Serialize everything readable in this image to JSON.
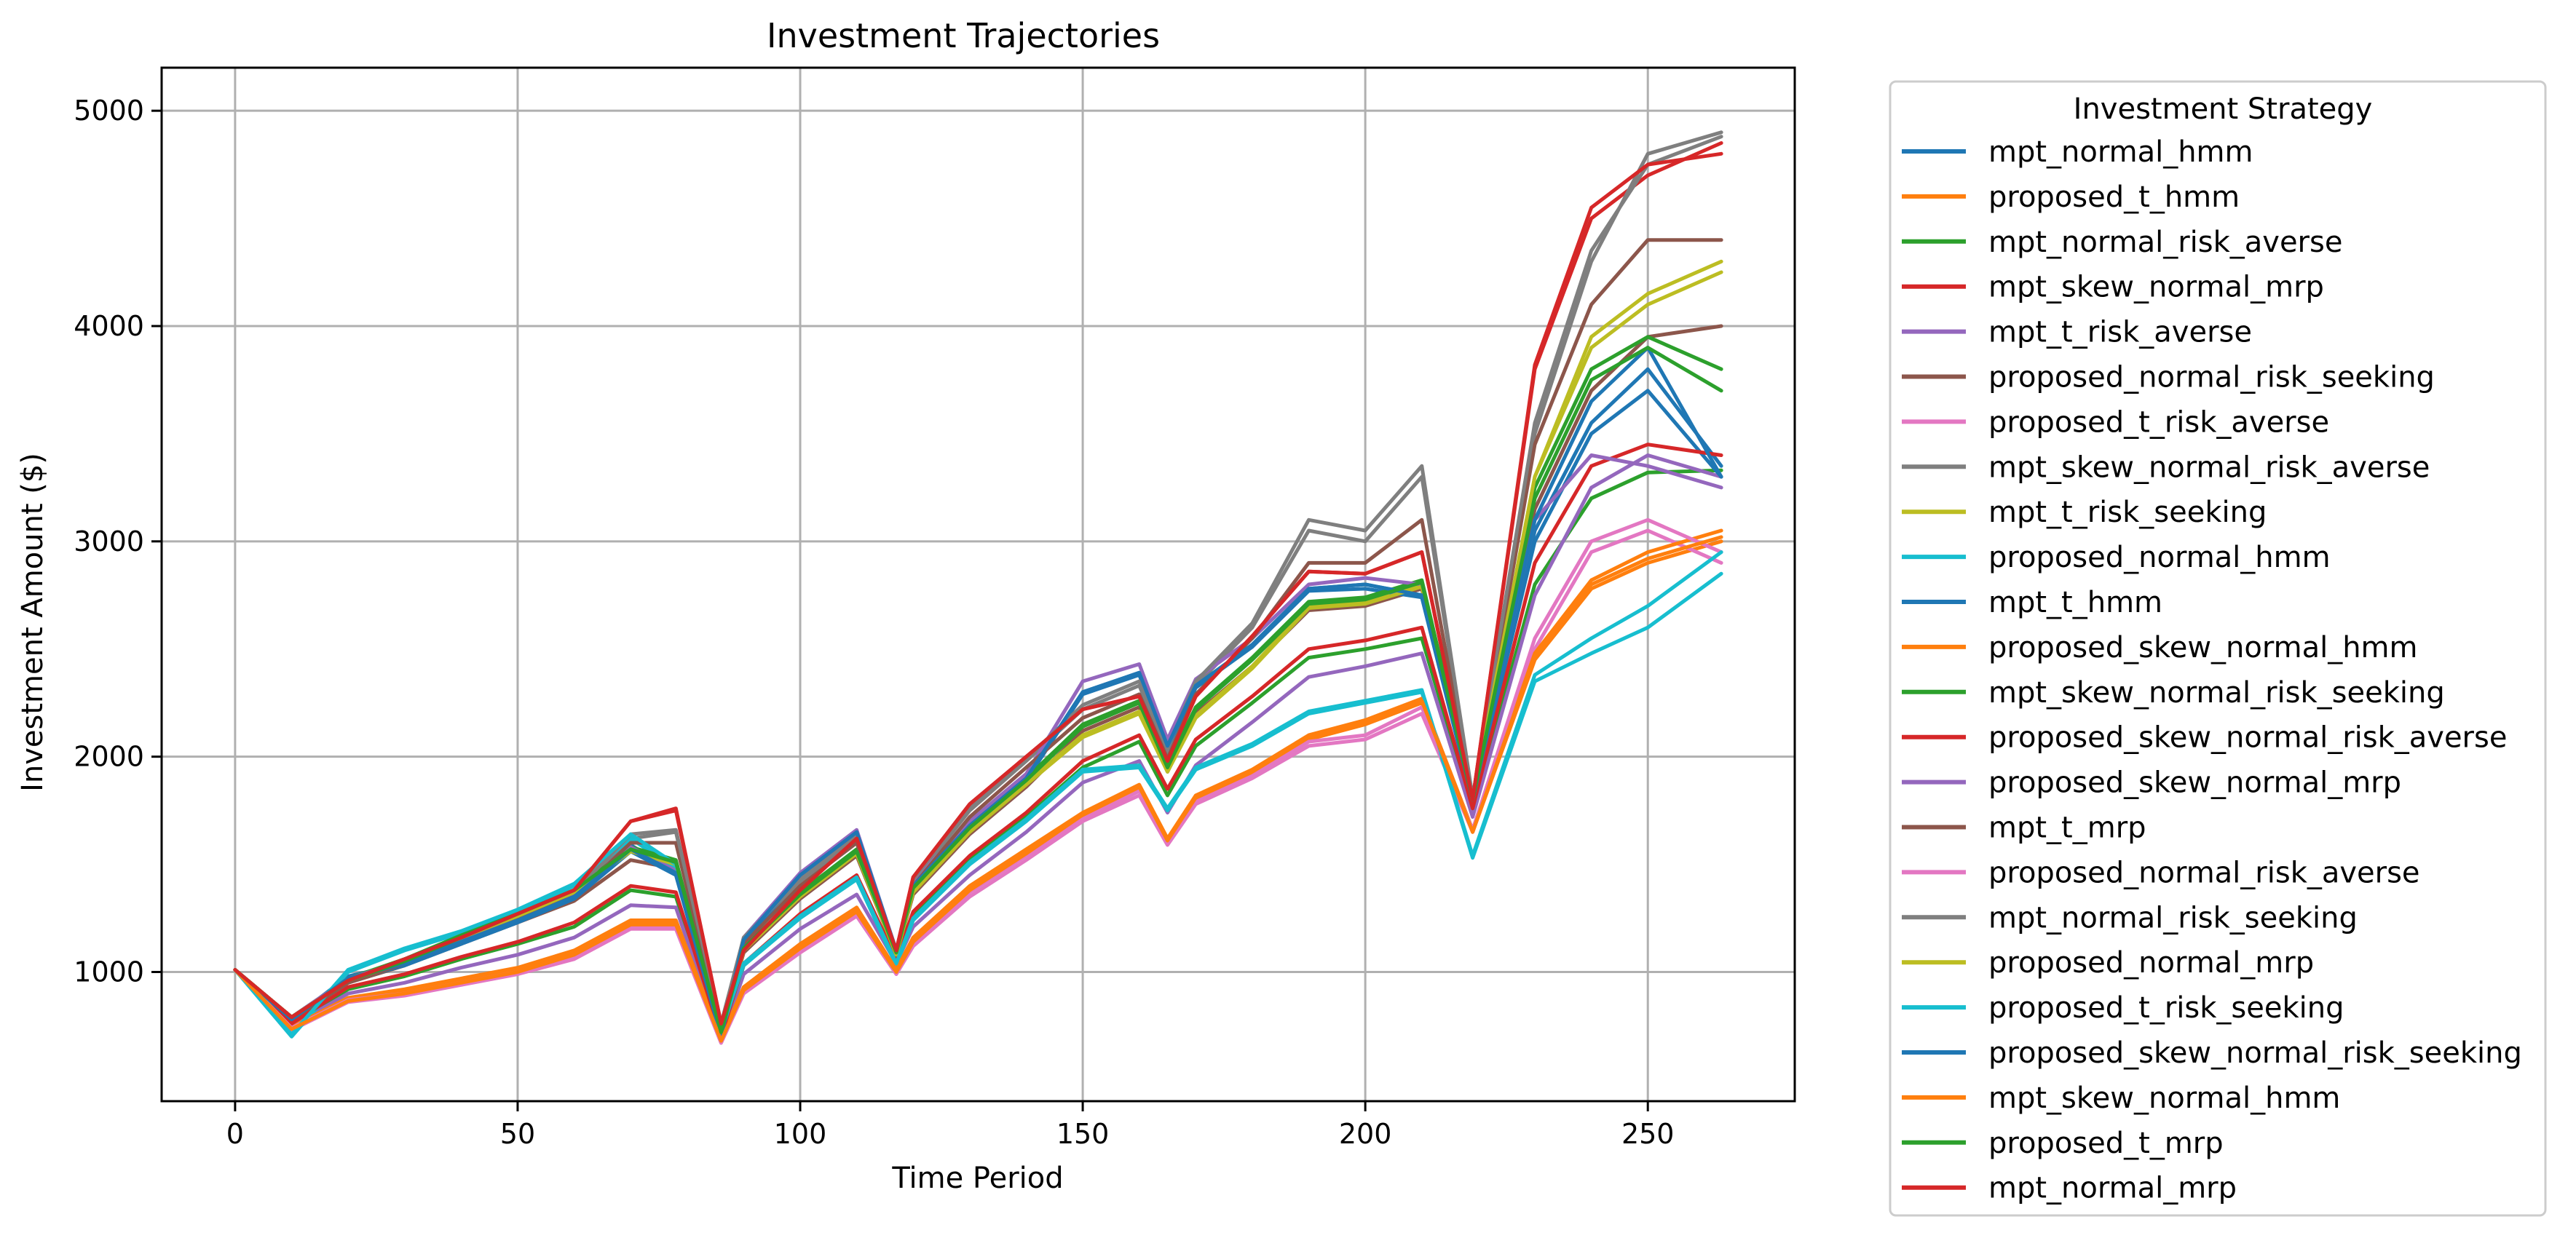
{
  "chart_data": {
    "type": "line",
    "title": "Investment Trajectories",
    "xlabel": "Time Period",
    "ylabel": "Investment Amount ($)",
    "xlim": [
      -13,
      276
    ],
    "ylim": [
      400,
      5200
    ],
    "xticks": [
      0,
      50,
      100,
      150,
      200,
      250
    ],
    "yticks": [
      1000,
      2000,
      3000,
      4000,
      5000
    ],
    "grid": true,
    "legend": {
      "title": "Investment Strategy",
      "placement": "outside-right"
    },
    "x": [
      0,
      10,
      20,
      30,
      40,
      50,
      60,
      70,
      78,
      86,
      90,
      100,
      110,
      117,
      120,
      130,
      140,
      150,
      160,
      165,
      170,
      180,
      190,
      200,
      210,
      219,
      230,
      240,
      250,
      263
    ],
    "series": [
      {
        "name": "mpt_normal_hmm",
        "color": "#1f77b4",
        "values": [
          1010,
          780,
          980,
          1040,
          1140,
          1240,
          1350,
          1590,
          1460,
          700,
          1150,
          1450,
          1650,
          1100,
          1400,
          1680,
          1900,
          2300,
          2390,
          2050,
          2330,
          2520,
          2780,
          2800,
          2750,
          1800,
          3050,
          3550,
          3800,
          3350
        ]
      },
      {
        "name": "proposed_t_hmm",
        "color": "#ff7f0e",
        "values": [
          1010,
          740,
          870,
          910,
          960,
          1010,
          1090,
          1230,
          1230,
          680,
          920,
          1120,
          1290,
          1000,
          1150,
          1390,
          1560,
          1720,
          1850,
          1600,
          1800,
          1920,
          2080,
          2150,
          2250,
          1650,
          2450,
          2780,
          2900,
          3000
        ]
      },
      {
        "name": "mpt_normal_risk_averse",
        "color": "#2ca02c",
        "values": [
          1010,
          760,
          920,
          980,
          1060,
          1130,
          1210,
          1380,
          1350,
          690,
          1030,
          1260,
          1430,
          1050,
          1270,
          1520,
          1720,
          1950,
          2070,
          1820,
          2050,
          2250,
          2460,
          2500,
          2550,
          1750,
          2800,
          3200,
          3320,
          3330
        ]
      },
      {
        "name": "mpt_skew_normal_mrp",
        "color": "#d62728",
        "values": [
          1010,
          790,
          960,
          1060,
          1160,
          1270,
          1380,
          1700,
          1750,
          760,
          1100,
          1380,
          1620,
          1100,
          1440,
          1780,
          2000,
          2220,
          2280,
          1980,
          2280,
          2560,
          2860,
          2850,
          2950,
          1800,
          3800,
          4500,
          4700,
          4850
        ]
      },
      {
        "name": "mpt_t_risk_averse",
        "color": "#9467bd",
        "values": [
          1010,
          750,
          900,
          950,
          1020,
          1080,
          1160,
          1310,
          1300,
          680,
          990,
          1200,
          1360,
          1040,
          1210,
          1450,
          1650,
          1880,
          1980,
          1740,
          1960,
          2160,
          2370,
          2420,
          2480,
          1720,
          2750,
          3250,
          3400,
          3300
        ]
      },
      {
        "name": "proposed_normal_risk_seeking",
        "color": "#8c564b",
        "values": [
          1010,
          780,
          950,
          1030,
          1130,
          1230,
          1330,
          1520,
          1480,
          720,
          1090,
          1340,
          1540,
          1080,
          1360,
          1640,
          1860,
          2120,
          2230,
          1930,
          2200,
          2420,
          2680,
          2700,
          2780,
          1800,
          3150,
          3700,
          3950,
          4000
        ]
      },
      {
        "name": "proposed_t_risk_averse",
        "color": "#e377c2",
        "values": [
          1010,
          730,
          860,
          890,
          940,
          990,
          1060,
          1200,
          1200,
          670,
          900,
          1090,
          1260,
          990,
          1120,
          1350,
          1520,
          1700,
          1820,
          1590,
          1780,
          1900,
          2050,
          2080,
          2200,
          1650,
          2500,
          2950,
          3050,
          2900
        ]
      },
      {
        "name": "mpt_skew_normal_risk_averse",
        "color": "#7f7f7f",
        "values": [
          1010,
          780,
          950,
          1040,
          1140,
          1260,
          1370,
          1620,
          1650,
          750,
          1150,
          1420,
          1620,
          1080,
          1420,
          1750,
          1980,
          2220,
          2330,
          2020,
          2330,
          2600,
          3050,
          3000,
          3300,
          1800,
          3500,
          4300,
          4800,
          4900
        ]
      },
      {
        "name": "mpt_t_risk_seeking",
        "color": "#bcbd22",
        "values": [
          1010,
          790,
          960,
          1050,
          1160,
          1260,
          1370,
          1560,
          1500,
          720,
          1100,
          1350,
          1550,
          1080,
          1380,
          1660,
          1880,
          2100,
          2210,
          1940,
          2190,
          2420,
          2700,
          2720,
          2800,
          1800,
          3300,
          3950,
          4150,
          4300
        ]
      },
      {
        "name": "proposed_normal_hmm",
        "color": "#17becf",
        "values": [
          1010,
          700,
          1000,
          1100,
          1180,
          1280,
          1400,
          1620,
          1480,
          710,
          1030,
          1250,
          1430,
          1030,
          1240,
          1500,
          1700,
          1930,
          1950,
          1750,
          1940,
          2050,
          2200,
          2250,
          2300,
          1530,
          2350,
          2480,
          2600,
          2850
        ]
      },
      {
        "name": "mpt_t_hmm",
        "color": "#1f77b4",
        "values": [
          1010,
          770,
          960,
          1030,
          1130,
          1230,
          1340,
          1560,
          1450,
          700,
          1140,
          1440,
          1640,
          1090,
          1390,
          1670,
          1890,
          2290,
          2380,
          2040,
          2320,
          2510,
          2770,
          2780,
          2740,
          1790,
          3000,
          3500,
          3700,
          3300
        ]
      },
      {
        "name": "proposed_skew_normal_hmm",
        "color": "#ff7f0e",
        "values": [
          1010,
          745,
          880,
          920,
          970,
          1020,
          1100,
          1240,
          1240,
          690,
          930,
          1130,
          1300,
          1010,
          1160,
          1400,
          1570,
          1740,
          1870,
          1620,
          1820,
          1940,
          2100,
          2170,
          2270,
          1660,
          2480,
          2820,
          2950,
          3050
        ]
      },
      {
        "name": "mpt_skew_normal_risk_seeking",
        "color": "#2ca02c",
        "values": [
          1010,
          790,
          970,
          1060,
          1170,
          1270,
          1380,
          1580,
          1520,
          720,
          1110,
          1370,
          1570,
          1090,
          1400,
          1680,
          1900,
          2150,
          2260,
          1960,
          2230,
          2460,
          2720,
          2740,
          2820,
          1810,
          3250,
          3800,
          3950,
          3800
        ]
      },
      {
        "name": "proposed_skew_normal_risk_averse",
        "color": "#d62728",
        "values": [
          1010,
          760,
          930,
          990,
          1070,
          1140,
          1230,
          1400,
          1370,
          700,
          1040,
          1270,
          1450,
          1060,
          1280,
          1540,
          1740,
          1980,
          2100,
          1850,
          2080,
          2280,
          2500,
          2540,
          2600,
          1760,
          2900,
          3350,
          3450,
          3400
        ]
      },
      {
        "name": "proposed_skew_normal_mrp",
        "color": "#9467bd",
        "values": [
          1010,
          790,
          970,
          1050,
          1150,
          1250,
          1360,
          1580,
          1470,
          720,
          1160,
          1460,
          1660,
          1100,
          1420,
          1700,
          1920,
          2350,
          2430,
          2080,
          2360,
          2550,
          2800,
          2830,
          2800,
          1800,
          3100,
          3400,
          3350,
          3250
        ]
      },
      {
        "name": "mpt_t_mrp",
        "color": "#8c564b",
        "values": [
          1010,
          780,
          950,
          1040,
          1140,
          1250,
          1350,
          1600,
          1600,
          740,
          1130,
          1400,
          1600,
          1080,
          1400,
          1720,
          1950,
          2180,
          2290,
          1990,
          2290,
          2550,
          2900,
          2900,
          3100,
          1800,
          3450,
          4100,
          4400,
          4400
        ]
      },
      {
        "name": "proposed_normal_risk_averse",
        "color": "#e377c2",
        "values": [
          1010,
          740,
          870,
          900,
          950,
          1000,
          1070,
          1210,
          1210,
          680,
          910,
          1100,
          1270,
          1000,
          1130,
          1370,
          1540,
          1710,
          1840,
          1600,
          1790,
          1910,
          2070,
          2100,
          2230,
          1660,
          2550,
          3000,
          3100,
          2950
        ]
      },
      {
        "name": "mpt_normal_risk_seeking",
        "color": "#7f7f7f",
        "values": [
          1010,
          790,
          960,
          1050,
          1150,
          1260,
          1370,
          1640,
          1660,
          760,
          1160,
          1430,
          1630,
          1090,
          1430,
          1760,
          1990,
          2240,
          2350,
          2040,
          2350,
          2620,
          3100,
          3050,
          3350,
          1810,
          3550,
          4350,
          4750,
          4880
        ]
      },
      {
        "name": "proposed_normal_mrp",
        "color": "#bcbd22",
        "values": [
          1010,
          790,
          960,
          1050,
          1160,
          1260,
          1370,
          1560,
          1500,
          720,
          1100,
          1350,
          1550,
          1080,
          1370,
          1650,
          1870,
          2090,
          2200,
          1930,
          2180,
          2410,
          2690,
          2710,
          2790,
          1800,
          3300,
          3900,
          4100,
          4250
        ]
      },
      {
        "name": "proposed_t_risk_seeking",
        "color": "#17becf",
        "values": [
          1010,
          710,
          1010,
          1110,
          1190,
          1290,
          1410,
          1640,
          1500,
          720,
          1040,
          1260,
          1440,
          1040,
          1250,
          1510,
          1710,
          1940,
          1960,
          1760,
          1950,
          2060,
          2210,
          2260,
          2310,
          1540,
          2380,
          2550,
          2700,
          2950
        ]
      },
      {
        "name": "proposed_skew_normal_risk_seeking",
        "color": "#1f77b4",
        "values": [
          1010,
          780,
          970,
          1040,
          1140,
          1240,
          1350,
          1570,
          1460,
          700,
          1150,
          1450,
          1650,
          1100,
          1400,
          1680,
          1900,
          2300,
          2390,
          2050,
          2330,
          2520,
          2780,
          2800,
          2750,
          1800,
          3100,
          3650,
          3900,
          3300
        ]
      },
      {
        "name": "mpt_skew_normal_hmm",
        "color": "#ff7f0e",
        "values": [
          1010,
          735,
          865,
          900,
          950,
          1000,
          1080,
          1220,
          1220,
          680,
          915,
          1110,
          1280,
          1000,
          1140,
          1380,
          1550,
          1730,
          1860,
          1610,
          1810,
          1930,
          2090,
          2160,
          2260,
          1650,
          2470,
          2800,
          2920,
          3020
        ]
      },
      {
        "name": "proposed_t_mrp",
        "color": "#2ca02c",
        "values": [
          1010,
          790,
          960,
          1050,
          1160,
          1270,
          1380,
          1570,
          1510,
          720,
          1110,
          1360,
          1560,
          1090,
          1390,
          1670,
          1890,
          2140,
          2250,
          1950,
          2220,
          2450,
          2710,
          2730,
          2810,
          1800,
          3200,
          3750,
          3900,
          3700
        ]
      },
      {
        "name": "mpt_normal_mrp",
        "color": "#d62728",
        "values": [
          1010,
          790,
          960,
          1060,
          1160,
          1270,
          1380,
          1700,
          1760,
          760,
          1100,
          1380,
          1620,
          1100,
          1440,
          1780,
          2000,
          2220,
          2280,
          1980,
          2280,
          2560,
          2860,
          2850,
          2950,
          1800,
          3820,
          4550,
          4750,
          4800
        ]
      }
    ]
  }
}
